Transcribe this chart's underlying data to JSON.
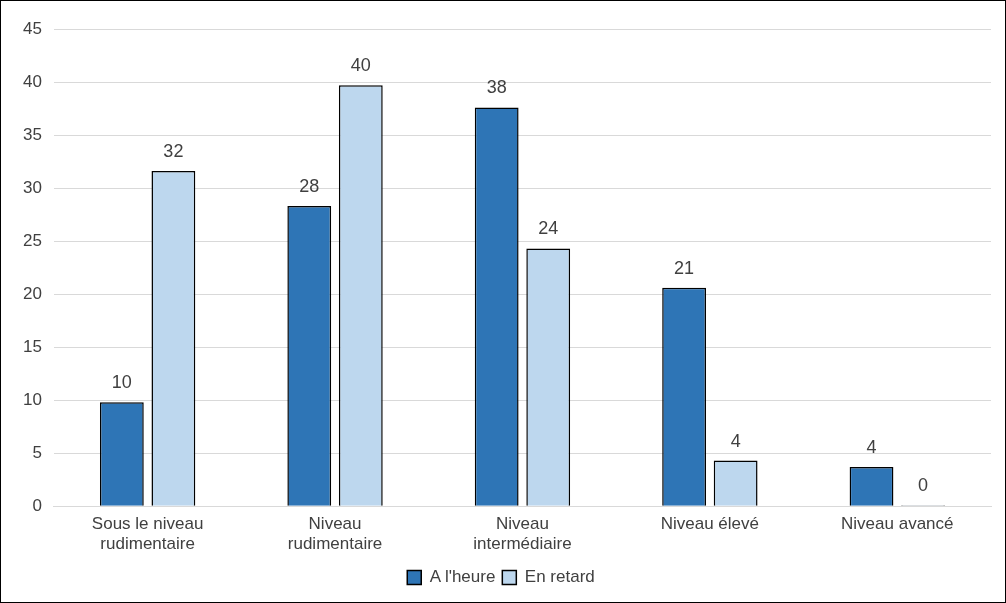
{
  "chart_data": {
    "type": "bar",
    "categories": [
      "Sous le niveau rudimentaire",
      "Niveau rudimentaire",
      "Niveau intermédiaire",
      "Niveau élevé",
      "Niveau avancé"
    ],
    "series": [
      {
        "name": "A l'heure",
        "color": "#2e75b6",
        "values": [
          9.8,
          28.3,
          37.6,
          20.6,
          3.7
        ],
        "value_labels": [
          "10",
          "28",
          "38",
          "21",
          "4"
        ]
      },
      {
        "name": "En retard",
        "color": "#bdd7ee",
        "values": [
          31.6,
          39.7,
          24.3,
          4.3,
          0.1
        ],
        "value_labels": [
          "32",
          "40",
          "24",
          "4",
          "0"
        ]
      }
    ],
    "ylim": [
      0,
      45
    ],
    "yticks": [
      0,
      5,
      10,
      15,
      20,
      25,
      30,
      35,
      40,
      45
    ],
    "grid": "y",
    "legend": "bottom"
  }
}
